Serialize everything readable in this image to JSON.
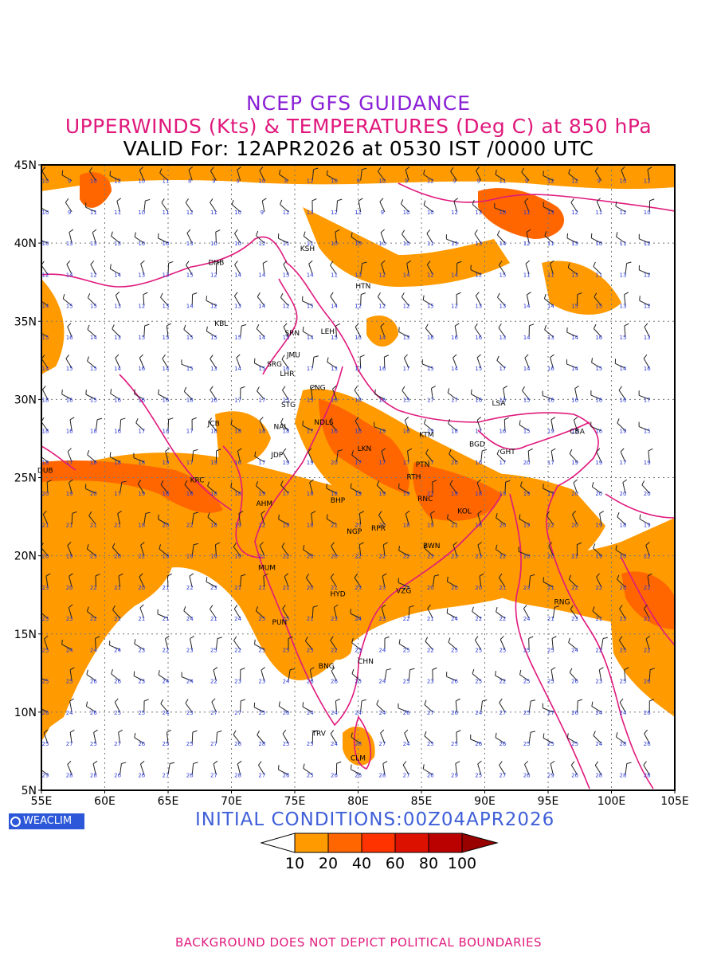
{
  "titles": {
    "line1": "NCEP GFS GUIDANCE",
    "line2": "UPPERWINDS (Kts) & TEMPERATURES (Deg C) at 850 hPa",
    "line3": "VALID For: 12APR2026 at 0530 IST /0000 UTC"
  },
  "axes": {
    "lat_labels": [
      "45N",
      "40N",
      "35N",
      "30N",
      "25N",
      "20N",
      "15N",
      "10N",
      "5N"
    ],
    "lon_labels": [
      "55E",
      "60E",
      "65E",
      "70E",
      "75E",
      "80E",
      "85E",
      "90E",
      "95E",
      "100E",
      "105E"
    ]
  },
  "stations": [
    {
      "code": "KSH",
      "lon": 76.0,
      "lat": 39.5
    },
    {
      "code": "DHB",
      "lon": 68.8,
      "lat": 38.6
    },
    {
      "code": "HTN",
      "lon": 80.4,
      "lat": 37.1
    },
    {
      "code": "KBL",
      "lon": 69.2,
      "lat": 34.7
    },
    {
      "code": "SRN",
      "lon": 74.8,
      "lat": 34.1
    },
    {
      "code": "LEH",
      "lon": 77.6,
      "lat": 34.2
    },
    {
      "code": "JMU",
      "lon": 74.9,
      "lat": 32.7
    },
    {
      "code": "SRG",
      "lon": 73.4,
      "lat": 32.1
    },
    {
      "code": "LHR",
      "lon": 74.4,
      "lat": 31.5
    },
    {
      "code": "CNG",
      "lon": 76.8,
      "lat": 30.6
    },
    {
      "code": "STG",
      "lon": 74.5,
      "lat": 29.5
    },
    {
      "code": "LSA",
      "lon": 91.1,
      "lat": 29.6
    },
    {
      "code": "JCB",
      "lon": 68.6,
      "lat": 28.3
    },
    {
      "code": "NAL",
      "lon": 73.9,
      "lat": 28.1
    },
    {
      "code": "NDLS",
      "lon": 77.3,
      "lat": 28.4
    },
    {
      "code": "KTM",
      "lon": 85.4,
      "lat": 27.6
    },
    {
      "code": "BGD",
      "lon": 89.4,
      "lat": 27.0
    },
    {
      "code": "CBA",
      "lon": 97.3,
      "lat": 27.8
    },
    {
      "code": "GHT",
      "lon": 91.8,
      "lat": 26.5
    },
    {
      "code": "JDP",
      "lon": 73.6,
      "lat": 26.3
    },
    {
      "code": "LKN",
      "lon": 80.5,
      "lat": 26.7
    },
    {
      "code": "PTN",
      "lon": 85.1,
      "lat": 25.7
    },
    {
      "code": "DUB",
      "lon": 55.3,
      "lat": 25.3
    },
    {
      "code": "KRC",
      "lon": 67.3,
      "lat": 24.7
    },
    {
      "code": "RTH",
      "lon": 84.4,
      "lat": 24.9
    },
    {
      "code": "BHP",
      "lon": 78.4,
      "lat": 23.4
    },
    {
      "code": "AHM",
      "lon": 72.6,
      "lat": 23.2
    },
    {
      "code": "RNC",
      "lon": 85.3,
      "lat": 23.5
    },
    {
      "code": "KOL",
      "lon": 88.4,
      "lat": 22.7
    },
    {
      "code": "NGP",
      "lon": 79.7,
      "lat": 21.4
    },
    {
      "code": "RPR",
      "lon": 81.6,
      "lat": 21.6
    },
    {
      "code": "BWN",
      "lon": 85.8,
      "lat": 20.5
    },
    {
      "code": "MUM",
      "lon": 72.8,
      "lat": 19.1
    },
    {
      "code": "HYD",
      "lon": 78.4,
      "lat": 17.4
    },
    {
      "code": "VZG",
      "lon": 83.6,
      "lat": 17.6
    },
    {
      "code": "RNG",
      "lon": 96.1,
      "lat": 16.9
    },
    {
      "code": "PUN",
      "lon": 73.8,
      "lat": 15.6
    },
    {
      "code": "CHN",
      "lon": 80.6,
      "lat": 13.1
    },
    {
      "code": "BNG",
      "lon": 77.5,
      "lat": 12.8
    },
    {
      "code": "TRV",
      "lon": 76.9,
      "lat": 8.5
    },
    {
      "code": "CLM",
      "lon": 80.0,
      "lat": 6.9
    }
  ],
  "colorbar": {
    "labels": [
      "10",
      "20",
      "40",
      "60",
      "80",
      "100"
    ],
    "colors": [
      "#ffffff",
      "#ff9a00",
      "#ff6600",
      "#ff3300",
      "#dd1100",
      "#bb0000",
      "#990000"
    ]
  },
  "brand": {
    "logo_text": "WEACLIM"
  },
  "initial_conditions": "INITIAL CONDITIONS:00Z04APR2026",
  "footer": "BACKGROUND DOES NOT DEPICT POLITICAL BOUNDARIES",
  "colors": {
    "shade_light": "#ff9a00",
    "shade_dark": "#ff6600",
    "boundary": "#e0197d",
    "temp_label": "#2a3bd8",
    "grid": "#555555"
  }
}
